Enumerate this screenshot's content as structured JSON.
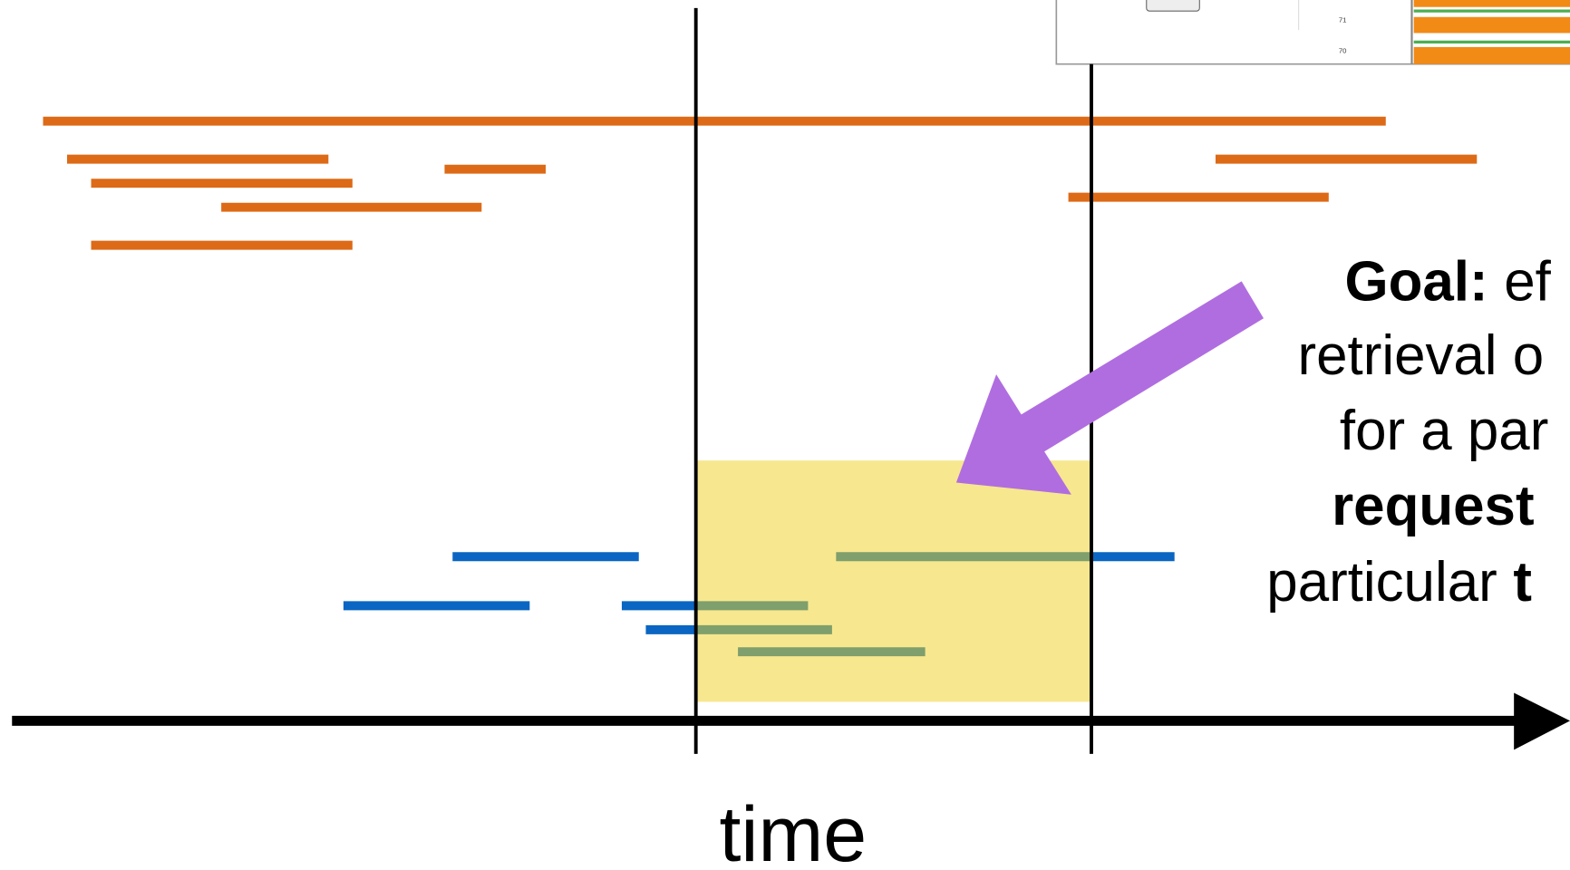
{
  "axis": {
    "label": "time"
  },
  "goal": {
    "lines": [
      [
        {
          "text": "Goal:",
          "bold": true
        },
        {
          "text": "ef",
          "bold": false
        }
      ],
      [
        {
          "text": "retrieval o",
          "bold": false
        }
      ],
      [
        {
          "text": "for a par",
          "bold": false
        }
      ],
      [
        {
          "text": "request",
          "bold": true
        }
      ],
      [
        {
          "text": "particular",
          "bold": false
        },
        {
          "text": "t",
          "bold": true
        }
      ]
    ]
  },
  "inset": {
    "row_labels": [
      "71",
      "70"
    ]
  }
}
